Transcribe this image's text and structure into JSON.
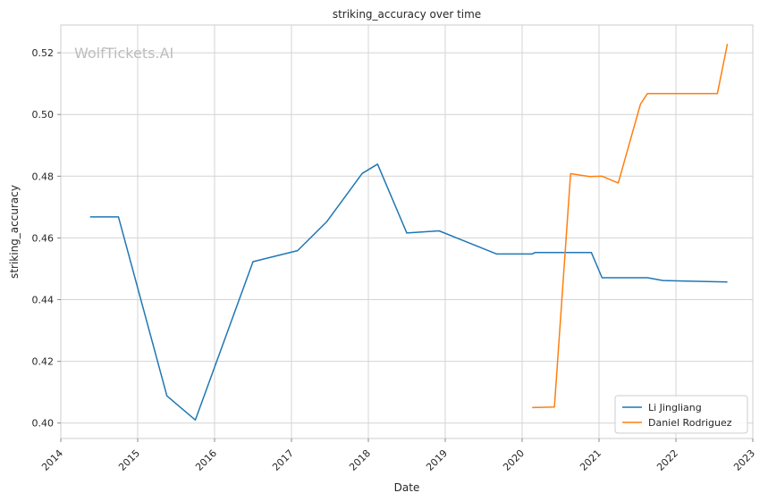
{
  "chart_data": {
    "type": "line",
    "title": "striking_accuracy over time",
    "xlabel": "Date",
    "ylabel": "striking_accuracy",
    "watermark": "WolfTickets.AI",
    "xlim": [
      2014.0,
      2023.0
    ],
    "ylim": [
      0.395,
      0.529
    ],
    "x_ticks": [
      2014,
      2015,
      2016,
      2017,
      2018,
      2019,
      2020,
      2021,
      2022,
      2023
    ],
    "x_tick_labels": [
      "2014",
      "2015",
      "2016",
      "2017",
      "2018",
      "2019",
      "2020",
      "2021",
      "2022",
      "2023"
    ],
    "y_ticks": [
      0.4,
      0.42,
      0.44,
      0.46,
      0.48,
      0.5,
      0.52
    ],
    "y_tick_labels": [
      "0.40",
      "0.42",
      "0.44",
      "0.46",
      "0.48",
      "0.50",
      "0.52"
    ],
    "grid": true,
    "legend_position": "lower-right",
    "series": [
      {
        "name": "Li Jingliang",
        "color": "#1f77b4",
        "x": [
          2014.38,
          2014.75,
          2015.38,
          2015.75,
          2016.5,
          2017.08,
          2017.46,
          2017.92,
          2018.12,
          2018.5,
          2018.92,
          2019.67,
          2020.13,
          2020.17,
          2020.9,
          2021.04,
          2021.63,
          2021.83,
          2022.67
        ],
        "y": [
          0.4668,
          0.4668,
          0.4088,
          0.401,
          0.4523,
          0.4559,
          0.4653,
          0.4809,
          0.4839,
          0.4616,
          0.4623,
          0.4548,
          0.4548,
          0.4553,
          0.4553,
          0.4471,
          0.4471,
          0.4462,
          0.4457
        ]
      },
      {
        "name": "Daniel Rodriguez",
        "color": "#ff7f0e",
        "x": [
          2020.13,
          2020.42,
          2020.63,
          2020.88,
          2021.04,
          2021.25,
          2021.54,
          2021.63,
          2022.54,
          2022.67
        ],
        "y": [
          0.405,
          0.4052,
          0.4808,
          0.4799,
          0.48,
          0.4778,
          0.5034,
          0.5068,
          0.5068,
          0.5229
        ]
      }
    ]
  }
}
